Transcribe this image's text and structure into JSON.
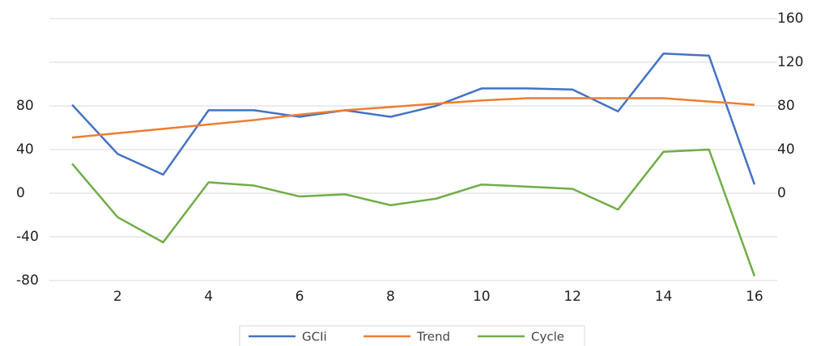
{
  "chart_data": {
    "type": "line",
    "x": [
      1,
      2,
      3,
      4,
      5,
      6,
      7,
      8,
      9,
      10,
      11,
      12,
      13,
      14,
      15,
      16
    ],
    "xlim": [
      0.5,
      16.5
    ],
    "xticks": [
      2,
      4,
      6,
      8,
      10,
      12,
      14,
      16
    ],
    "ylim": [
      -80,
      160
    ],
    "yticks": [
      -80,
      -40,
      0,
      40,
      80
    ],
    "y2lim": [
      -80,
      160
    ],
    "y2ticks": [
      0,
      40,
      80,
      120,
      160
    ],
    "grid": true,
    "legend": "bottom",
    "series": [
      {
        "name": "GCIi",
        "color": "#4472c4",
        "axis": "y2",
        "values": [
          81,
          36,
          17,
          76,
          76,
          70,
          76,
          70,
          80,
          96,
          96,
          95,
          75,
          128,
          126,
          8
        ]
      },
      {
        "name": "Trend",
        "color": "#ed7d31",
        "axis": "y2",
        "values": [
          51,
          55,
          59,
          63,
          67,
          72,
          76,
          79,
          82,
          85,
          87,
          87,
          87,
          87,
          84,
          81
        ]
      },
      {
        "name": "Cycle",
        "color": "#70ad47",
        "values": [
          27,
          -22,
          -45,
          10,
          7,
          -3,
          -1,
          -11,
          -5,
          8,
          6,
          4,
          -15,
          38,
          40,
          -76
        ]
      }
    ]
  }
}
